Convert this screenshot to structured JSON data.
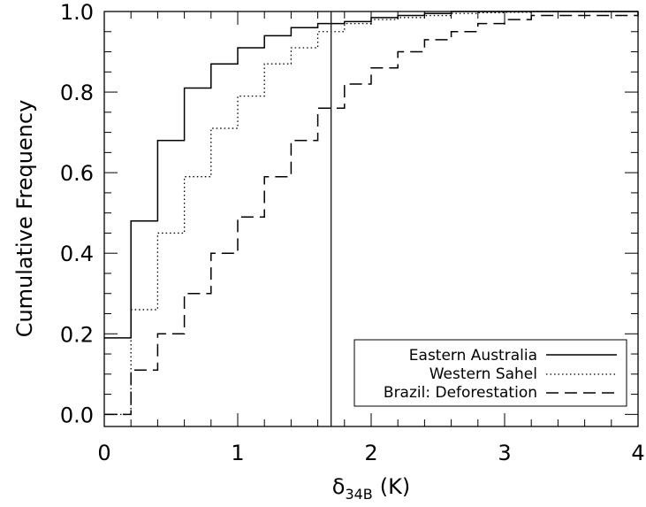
{
  "chart_data": {
    "type": "line",
    "step": true,
    "xlabel": "δ",
    "xlabel_sub": "34B",
    "xlabel_unit": "(K)",
    "ylabel": "Cumulative Frequency",
    "xlim": [
      0,
      4
    ],
    "ylim": [
      -0.03,
      1.0
    ],
    "xticks": [
      0,
      1,
      2,
      3,
      4
    ],
    "xtick_labels": [
      "0",
      "1",
      "2",
      "3",
      "4"
    ],
    "yticks": [
      0.0,
      0.2,
      0.4,
      0.6,
      0.8,
      1.0
    ],
    "ytick_labels": [
      "0.0",
      "0.2",
      "0.4",
      "0.6",
      "0.8",
      "1.0"
    ],
    "x_minor_step": 0.2,
    "y_minor_step": 0.05,
    "vline": 1.7,
    "grid": false,
    "legend_position": "bottom-right",
    "series": [
      {
        "name": "Eastern Australia",
        "dash": "solid",
        "x": [
          0,
          0.2,
          0.4,
          0.6,
          0.8,
          1.0,
          1.2,
          1.4,
          1.6,
          1.8,
          2.0,
          2.2,
          2.4,
          2.6,
          2.8,
          3.0,
          4.0
        ],
        "y": [
          0.19,
          0.48,
          0.68,
          0.81,
          0.87,
          0.91,
          0.94,
          0.96,
          0.97,
          0.975,
          0.985,
          0.99,
          0.995,
          1.0,
          1.0,
          1.0,
          1.0
        ]
      },
      {
        "name": "Western Sahel",
        "dash": "dotted",
        "x": [
          0,
          0.2,
          0.4,
          0.6,
          0.8,
          1.0,
          1.2,
          1.4,
          1.6,
          1.8,
          2.0,
          2.2,
          2.4,
          2.6,
          2.8,
          3.0,
          3.2,
          4.0
        ],
        "y": [
          0.0,
          0.26,
          0.45,
          0.59,
          0.71,
          0.79,
          0.87,
          0.91,
          0.95,
          0.97,
          0.98,
          0.985,
          0.99,
          0.995,
          0.997,
          0.998,
          1.0,
          1.0
        ]
      },
      {
        "name": "Brazil: Deforestation",
        "dash": "dashed",
        "x": [
          0,
          0.2,
          0.4,
          0.6,
          0.8,
          1.0,
          1.2,
          1.4,
          1.6,
          1.8,
          2.0,
          2.2,
          2.4,
          2.6,
          2.8,
          3.0,
          3.2,
          4.0
        ],
        "y": [
          0.0,
          0.11,
          0.2,
          0.3,
          0.4,
          0.49,
          0.59,
          0.68,
          0.76,
          0.82,
          0.86,
          0.9,
          0.93,
          0.95,
          0.97,
          0.98,
          0.99,
          1.0
        ]
      }
    ]
  }
}
